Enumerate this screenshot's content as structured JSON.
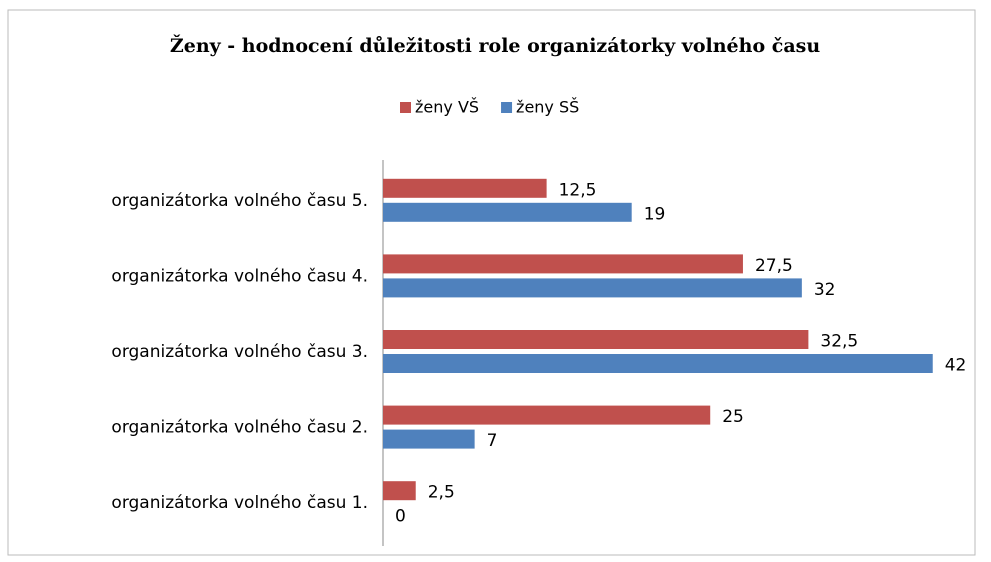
{
  "chart_data": {
    "type": "bar",
    "orientation": "horizontal",
    "title": "Ženy - hodnocení důležitosti role organizátorky volného času",
    "categories": [
      "organizátorka volného času 1.",
      "organizátorka volného času 2.",
      "organizátorka volného času 3.",
      "organizátorka volného času 4.",
      "organizátorka volného času 5."
    ],
    "series": [
      {
        "name": "ženy VŠ",
        "color": "#c0504d",
        "values": [
          2.5,
          25,
          32.5,
          27.5,
          12.5
        ],
        "value_labels": [
          "2,5",
          "25",
          "32,5",
          "27,5",
          "12,5"
        ]
      },
      {
        "name": "ženy SŠ",
        "color": "#4f81bd",
        "values": [
          0,
          7,
          42,
          32,
          19
        ]
      }
    ],
    "xlim": [
      0,
      45
    ],
    "legend": "top"
  }
}
